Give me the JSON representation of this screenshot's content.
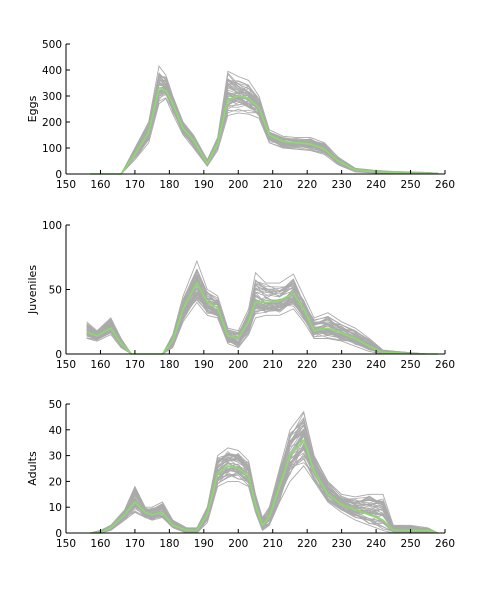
{
  "chart_data": [
    {
      "type": "line",
      "ylabel": "Eggs",
      "xlim": [
        150,
        260
      ],
      "ylim": [
        0,
        500
      ],
      "xticks": [
        150,
        160,
        170,
        180,
        190,
        200,
        210,
        220,
        230,
        240,
        250,
        260
      ],
      "yticks": [
        0,
        100,
        200,
        300,
        400,
        500
      ],
      "grid": false,
      "legend": "none",
      "series": [
        {
          "role": "ensemble-envelope-upper",
          "color": "#aaaaaa",
          "x": [
            157,
            166,
            170,
            174,
            177,
            179,
            181,
            184,
            187,
            191,
            194,
            197,
            200,
            203,
            206,
            209,
            213,
            217,
            221,
            225,
            229,
            234,
            240,
            245,
            250,
            255,
            258
          ],
          "values": [
            0,
            0,
            100,
            200,
            415,
            380,
            300,
            200,
            150,
            55,
            140,
            395,
            375,
            360,
            300,
            170,
            145,
            140,
            140,
            120,
            65,
            22,
            14,
            10,
            8,
            6,
            3
          ]
        },
        {
          "role": "ensemble-envelope-lower",
          "color": "#aaaaaa",
          "x": [
            157,
            166,
            170,
            174,
            177,
            179,
            181,
            184,
            187,
            191,
            194,
            197,
            200,
            203,
            206,
            209,
            213,
            217,
            221,
            225,
            229,
            234,
            240,
            245,
            250,
            255,
            258
          ],
          "values": [
            0,
            0,
            55,
            120,
            270,
            290,
            230,
            150,
            100,
            30,
            90,
            225,
            235,
            230,
            215,
            120,
            100,
            95,
            90,
            75,
            35,
            8,
            4,
            2,
            1,
            0,
            0
          ]
        },
        {
          "role": "mean",
          "color": "#88dd66",
          "x": [
            157,
            166,
            170,
            174,
            177,
            179,
            181,
            184,
            187,
            191,
            194,
            197,
            200,
            203,
            206,
            209,
            213,
            217,
            221,
            225,
            229,
            234,
            240,
            245,
            250,
            255,
            258
          ],
          "values": [
            0,
            0,
            75,
            160,
            330,
            320,
            270,
            175,
            130,
            40,
            115,
            285,
            300,
            290,
            255,
            150,
            125,
            120,
            115,
            95,
            50,
            15,
            8,
            5,
            3,
            2,
            1
          ]
        }
      ]
    },
    {
      "type": "line",
      "ylabel": "Juveniles",
      "xlim": [
        150,
        260
      ],
      "ylim": [
        0,
        100
      ],
      "xticks": [
        150,
        160,
        170,
        180,
        190,
        200,
        210,
        220,
        230,
        240,
        250,
        260
      ],
      "yticks": [
        0,
        50,
        100
      ],
      "grid": false,
      "legend": "none",
      "series": [
        {
          "role": "ensemble-envelope-upper",
          "color": "#aaaaaa",
          "x": [
            156,
            159,
            163,
            166,
            169,
            171,
            175,
            178,
            181,
            184,
            188,
            191,
            194,
            197,
            200,
            203,
            205,
            208,
            212,
            216,
            219,
            222,
            226,
            230,
            234,
            238,
            242,
            246,
            250,
            255,
            258
          ],
          "values": [
            25,
            18,
            28,
            12,
            0,
            0,
            0,
            0,
            15,
            45,
            72,
            50,
            45,
            20,
            18,
            35,
            63,
            55,
            55,
            62,
            45,
            28,
            32,
            25,
            20,
            12,
            3,
            2,
            1,
            0,
            0
          ],
          "breaks_after_x": []
        },
        {
          "role": "ensemble-envelope-lower",
          "color": "#aaaaaa",
          "x": [
            156,
            159,
            163,
            166,
            169,
            171,
            175,
            178,
            181,
            184,
            188,
            191,
            194,
            197,
            200,
            203,
            205,
            208,
            212,
            216,
            219,
            222,
            226,
            230,
            234,
            238,
            242,
            246,
            250,
            255,
            258
          ],
          "values": [
            12,
            10,
            15,
            5,
            0,
            0,
            0,
            0,
            5,
            25,
            40,
            30,
            28,
            8,
            5,
            15,
            28,
            30,
            30,
            35,
            25,
            12,
            12,
            10,
            6,
            2,
            0,
            0,
            0,
            0,
            0
          ]
        },
        {
          "role": "mean",
          "color": "#88dd66",
          "x": [
            156,
            159,
            163,
            166,
            169,
            171,
            175,
            178,
            181,
            184,
            188,
            191,
            194,
            197,
            200,
            203,
            205,
            208,
            212,
            216,
            219,
            222,
            226,
            230,
            234,
            238,
            242,
            246,
            250,
            255,
            258
          ],
          "values": [
            17,
            14,
            20,
            8,
            0,
            0,
            0,
            0,
            10,
            35,
            55,
            40,
            36,
            14,
            12,
            25,
            40,
            40,
            41,
            47,
            35,
            18,
            20,
            16,
            12,
            6,
            1,
            1,
            0,
            0,
            0
          ]
        }
      ]
    },
    {
      "type": "line",
      "ylabel": "Adults",
      "xlim": [
        150,
        260
      ],
      "ylim": [
        0,
        50
      ],
      "xticks": [
        150,
        160,
        170,
        180,
        190,
        200,
        210,
        220,
        230,
        240,
        250,
        260
      ],
      "yticks": [
        0,
        10,
        20,
        30,
        40,
        50
      ],
      "grid": false,
      "legend": "none",
      "series": [
        {
          "role": "ensemble-envelope-upper",
          "color": "#aaaaaa",
          "x": [
            157,
            160,
            163,
            167,
            170,
            173,
            175,
            178,
            181,
            185,
            188,
            191,
            194,
            197,
            200,
            203,
            205,
            207,
            209,
            212,
            215,
            219,
            222,
            226,
            230,
            234,
            238,
            242,
            245,
            250,
            255,
            258
          ],
          "values": [
            0,
            1,
            3,
            9,
            18,
            10,
            10,
            12,
            5,
            2,
            2,
            10,
            30,
            33,
            32,
            28,
            15,
            6,
            10,
            25,
            40,
            47,
            30,
            20,
            15,
            14,
            15,
            15,
            3,
            3,
            2,
            0
          ]
        },
        {
          "role": "ensemble-envelope-lower",
          "color": "#aaaaaa",
          "x": [
            157,
            160,
            163,
            167,
            170,
            173,
            175,
            178,
            181,
            185,
            188,
            191,
            194,
            197,
            200,
            203,
            205,
            207,
            209,
            212,
            215,
            219,
            222,
            226,
            230,
            234,
            238,
            242,
            245,
            250,
            255,
            258
          ],
          "values": [
            0,
            0,
            1,
            5,
            8,
            6,
            5,
            6,
            2,
            0,
            0,
            4,
            18,
            20,
            20,
            18,
            8,
            1,
            3,
            12,
            20,
            26,
            20,
            12,
            8,
            5,
            3,
            1,
            0,
            0,
            0,
            0
          ]
        },
        {
          "role": "mean",
          "color": "#88dd66",
          "x": [
            157,
            160,
            163,
            167,
            170,
            173,
            175,
            178,
            181,
            185,
            188,
            191,
            194,
            197,
            200,
            203,
            205,
            207,
            209,
            212,
            215,
            219,
            222,
            226,
            230,
            234,
            238,
            242,
            245,
            250,
            255,
            258
          ],
          "values": [
            0,
            0,
            2,
            7,
            12,
            8,
            7,
            8,
            3,
            1,
            1,
            7,
            23,
            26,
            25,
            22,
            11,
            3,
            6,
            18,
            30,
            36,
            24,
            15,
            11,
            9,
            7,
            5,
            1,
            1,
            1,
            0
          ]
        }
      ]
    }
  ]
}
